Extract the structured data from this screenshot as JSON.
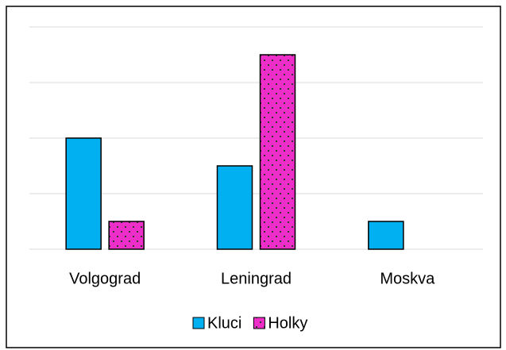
{
  "chart_data": {
    "type": "bar",
    "categories": [
      "Volgograd",
      "Leningrad",
      "Moskva"
    ],
    "series": [
      {
        "name": "Kluci",
        "color": "#00b0f0",
        "values": [
          2,
          1.5,
          0.5
        ]
      },
      {
        "name": "Holky",
        "color": "#ee2ec8",
        "values": [
          0.5,
          3.5,
          null
        ]
      }
    ],
    "ylim": [
      0,
      4
    ],
    "yticks": [
      0,
      1,
      2,
      3,
      4
    ],
    "grid": true,
    "legend": "bottom"
  }
}
